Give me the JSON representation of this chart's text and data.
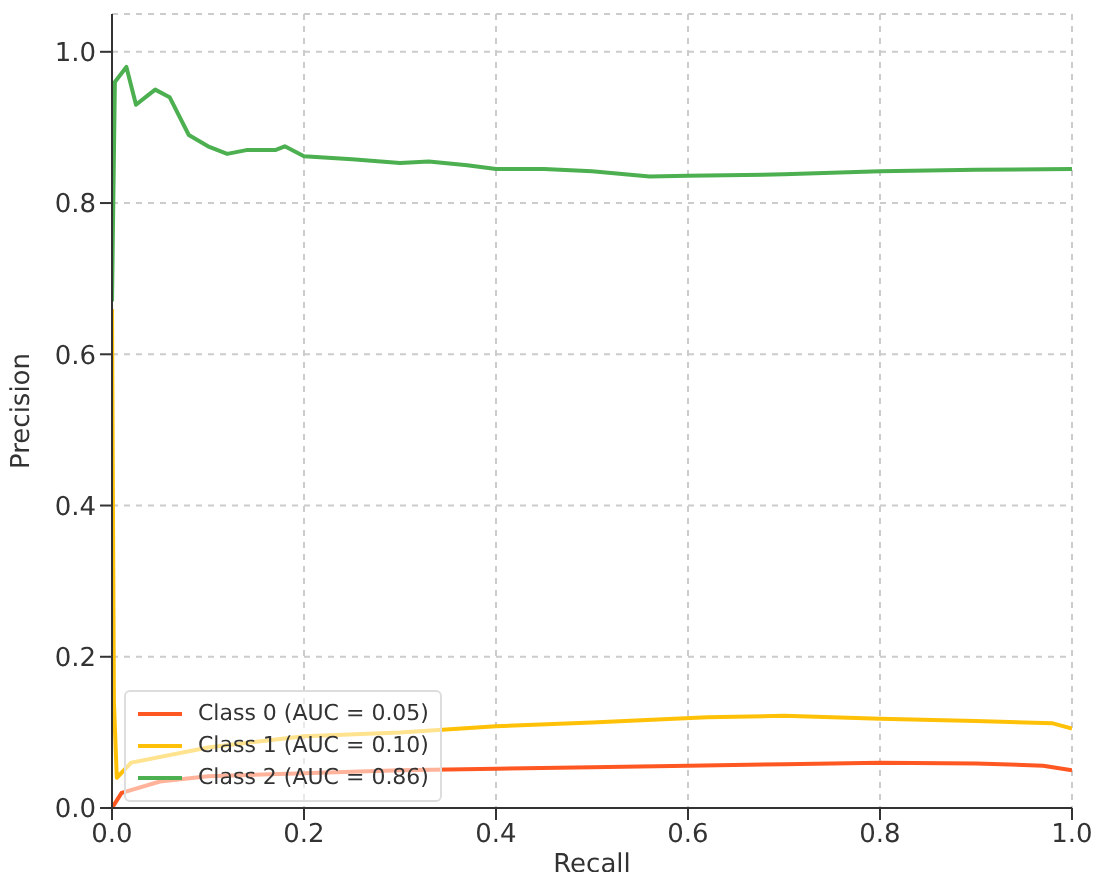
{
  "chart_data": {
    "type": "line",
    "xlabel": "Recall",
    "ylabel": "Precision",
    "xlim": [
      0,
      1
    ],
    "ylim": [
      0,
      1.05
    ],
    "xticks": [
      {
        "value": 0,
        "label": "0.0"
      },
      0.2,
      0.4,
      0.6,
      0.8,
      {
        "value": 1,
        "label": "1.0"
      }
    ],
    "yticks": [
      {
        "value": 0,
        "label": "0.0"
      },
      0.2,
      0.4,
      0.6,
      0.8,
      {
        "value": 1,
        "label": "1.0"
      }
    ],
    "grid": true,
    "legend": "bottom left",
    "marker": "none",
    "line_style": "solid",
    "series": [
      {
        "name": "Class 0 (AUC = 0.05)",
        "color": "#ff5722",
        "x": [
          0,
          0.01,
          0.05,
          0.1,
          0.2,
          0.3,
          0.4,
          0.5,
          0.6,
          0.7,
          0.8,
          0.9,
          0.97,
          1.0
        ],
        "values": [
          0,
          0.02,
          0.035,
          0.042,
          0.046,
          0.05,
          0.052,
          0.054,
          0.056,
          0.058,
          0.06,
          0.059,
          0.056,
          0.05
        ]
      },
      {
        "name": "Class 1 (AUC = 0.10)",
        "color": "#ffc107",
        "x": [
          0,
          0.002,
          0.005,
          0.02,
          0.1,
          0.2,
          0.3,
          0.4,
          0.5,
          0.62,
          0.7,
          0.8,
          0.9,
          0.98,
          1.0
        ],
        "values": [
          0.66,
          0.14,
          0.04,
          0.06,
          0.08,
          0.095,
          0.1,
          0.108,
          0.113,
          0.12,
          0.122,
          0.118,
          0.115,
          0.112,
          0.105
        ]
      },
      {
        "name": "Class 2 (AUC = 0.86)",
        "color": "#4caf50",
        "x": [
          0,
          0.003,
          0.015,
          0.025,
          0.035,
          0.045,
          0.06,
          0.08,
          0.1,
          0.12,
          0.14,
          0.17,
          0.18,
          0.2,
          0.25,
          0.3,
          0.33,
          0.37,
          0.4,
          0.45,
          0.5,
          0.56,
          0.6,
          0.7,
          0.8,
          0.9,
          1.0
        ],
        "values": [
          0.67,
          0.96,
          0.98,
          0.93,
          0.94,
          0.95,
          0.94,
          0.89,
          0.875,
          0.865,
          0.87,
          0.87,
          0.875,
          0.862,
          0.858,
          0.853,
          0.855,
          0.85,
          0.845,
          0.845,
          0.842,
          0.835,
          0.836,
          0.838,
          0.842,
          0.844,
          0.845
        ]
      }
    ]
  }
}
